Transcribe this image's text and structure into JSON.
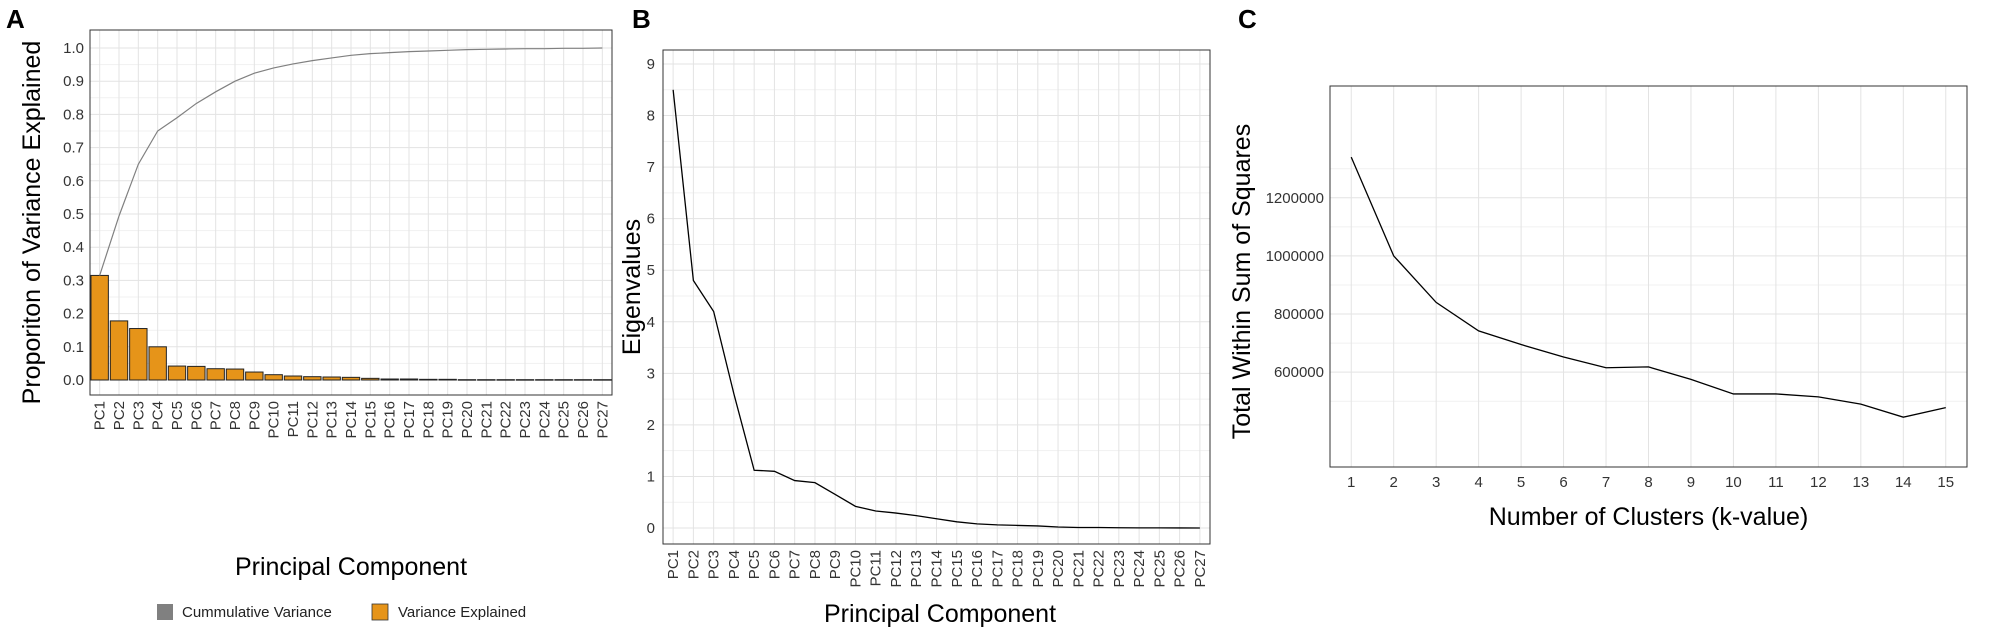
{
  "chart_data": [
    {
      "panel": "A",
      "type": "bar",
      "xlabel": "Principal Component",
      "ylabel": "Proporiton of Variance Explained",
      "ylim": [
        0,
        1.0
      ],
      "yticks": [
        "0.0",
        "0.1",
        "0.2",
        "0.3",
        "0.4",
        "0.5",
        "0.6",
        "0.7",
        "0.8",
        "0.9",
        "1.0"
      ],
      "categories": [
        "PC1",
        "PC2",
        "PC3",
        "PC4",
        "PC5",
        "PC6",
        "PC7",
        "PC8",
        "PC9",
        "PC10",
        "PC11",
        "PC12",
        "PC13",
        "PC14",
        "PC15",
        "PC16",
        "PC17",
        "PC18",
        "PC19",
        "PC20",
        "PC21",
        "PC22",
        "PC23",
        "PC24",
        "PC25",
        "PC26",
        "PC27"
      ],
      "series": [
        {
          "name": "Variance Explained",
          "type": "bar",
          "color": "#E69419",
          "values": [
            0.315,
            0.178,
            0.155,
            0.1,
            0.042,
            0.041,
            0.034,
            0.033,
            0.024,
            0.016,
            0.012,
            0.01,
            0.009,
            0.008,
            0.005,
            0.003,
            0.003,
            0.002,
            0.002,
            0.001,
            0.001,
            0.001,
            0.001,
            0.001,
            0.001,
            0.001,
            0.001
          ]
        },
        {
          "name": "Cummulative Variance",
          "type": "line",
          "color": "#808080",
          "values": [
            0.315,
            0.494,
            0.65,
            0.75,
            0.79,
            0.833,
            0.868,
            0.9,
            0.924,
            0.94,
            0.952,
            0.962,
            0.97,
            0.978,
            0.983,
            0.986,
            0.989,
            0.991,
            0.993,
            0.995,
            0.996,
            0.997,
            0.998,
            0.998,
            0.999,
            0.999,
            1.0
          ]
        }
      ],
      "legend": "bottom"
    },
    {
      "panel": "B",
      "type": "line",
      "xlabel": "Principal Component",
      "ylabel": "Eigenvalues",
      "ylim": [
        0,
        9
      ],
      "yticks": [
        "0",
        "1",
        "2",
        "3",
        "4",
        "5",
        "6",
        "7",
        "8",
        "9"
      ],
      "categories": [
        "PC1",
        "PC2",
        "PC3",
        "PC4",
        "PC5",
        "PC6",
        "PC7",
        "PC8",
        "PC9",
        "PC10",
        "PC11",
        "PC12",
        "PC13",
        "PC14",
        "PC15",
        "PC16",
        "PC17",
        "PC18",
        "PC19",
        "PC20",
        "PC21",
        "PC22",
        "PC23",
        "PC24",
        "PC25",
        "PC26",
        "PC27"
      ],
      "values": [
        8.5,
        4.8,
        4.2,
        2.6,
        1.12,
        1.1,
        0.92,
        0.88,
        0.65,
        0.42,
        0.33,
        0.29,
        0.24,
        0.18,
        0.12,
        0.08,
        0.06,
        0.05,
        0.04,
        0.02,
        0.01,
        0.01,
        0.005,
        0.003,
        0.002,
        0.001,
        0.0
      ]
    },
    {
      "panel": "C",
      "type": "line",
      "xlabel": "Number of Clusters (k-value)",
      "ylabel": "Total Within Sum of Squares",
      "ylim": [
        420000,
        1400000
      ],
      "yticks": [
        600000,
        800000,
        1000000,
        1200000
      ],
      "x": [
        1,
        2,
        3,
        4,
        5,
        6,
        7,
        8,
        9,
        10,
        11,
        12,
        13,
        14,
        15
      ],
      "values": [
        1340000,
        1000000,
        840000,
        742000,
        695000,
        652000,
        615000,
        618000,
        575000,
        525000,
        525000,
        515000,
        490000,
        445000,
        478000
      ]
    }
  ]
}
